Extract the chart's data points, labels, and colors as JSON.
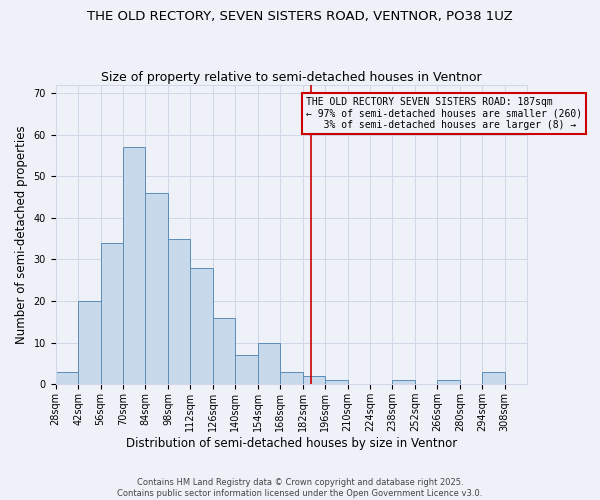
{
  "title": "THE OLD RECTORY, SEVEN SISTERS ROAD, VENTNOR, PO38 1UZ",
  "subtitle": "Size of property relative to semi-detached houses in Ventnor",
  "xlabel": "Distribution of semi-detached houses by size in Ventnor",
  "ylabel": "Number of semi-detached properties",
  "bins": [
    28,
    42,
    56,
    70,
    84,
    98,
    112,
    126,
    140,
    154,
    168,
    182,
    196,
    210,
    224,
    238,
    252,
    266,
    280,
    294,
    308
  ],
  "counts": [
    3,
    20,
    34,
    57,
    46,
    35,
    28,
    16,
    7,
    10,
    3,
    2,
    1,
    0,
    0,
    1,
    0,
    1,
    0,
    3
  ],
  "bar_color": "#c8d9ec",
  "bar_edge_color": "#5b8db8",
  "grid_color": "#d0d8e8",
  "background_color": "#eef2f8",
  "property_size": 187,
  "vline_color": "#cc0000",
  "annotation_text": "THE OLD RECTORY SEVEN SISTERS ROAD: 187sqm\n← 97% of semi-detached houses are smaller (260)\n   3% of semi-detached houses are larger (8) →",
  "annotation_box_edge": "#cc0000",
  "ylim": [
    0,
    72
  ],
  "yticks": [
    0,
    10,
    20,
    30,
    40,
    50,
    60,
    70
  ],
  "footnote": "Contains HM Land Registry data © Crown copyright and database right 2025.\nContains public sector information licensed under the Open Government Licence v3.0.",
  "title_fontsize": 9.5,
  "subtitle_fontsize": 9,
  "label_fontsize": 8.5,
  "tick_fontsize": 7,
  "annotation_fontsize": 7,
  "footnote_fontsize": 6
}
